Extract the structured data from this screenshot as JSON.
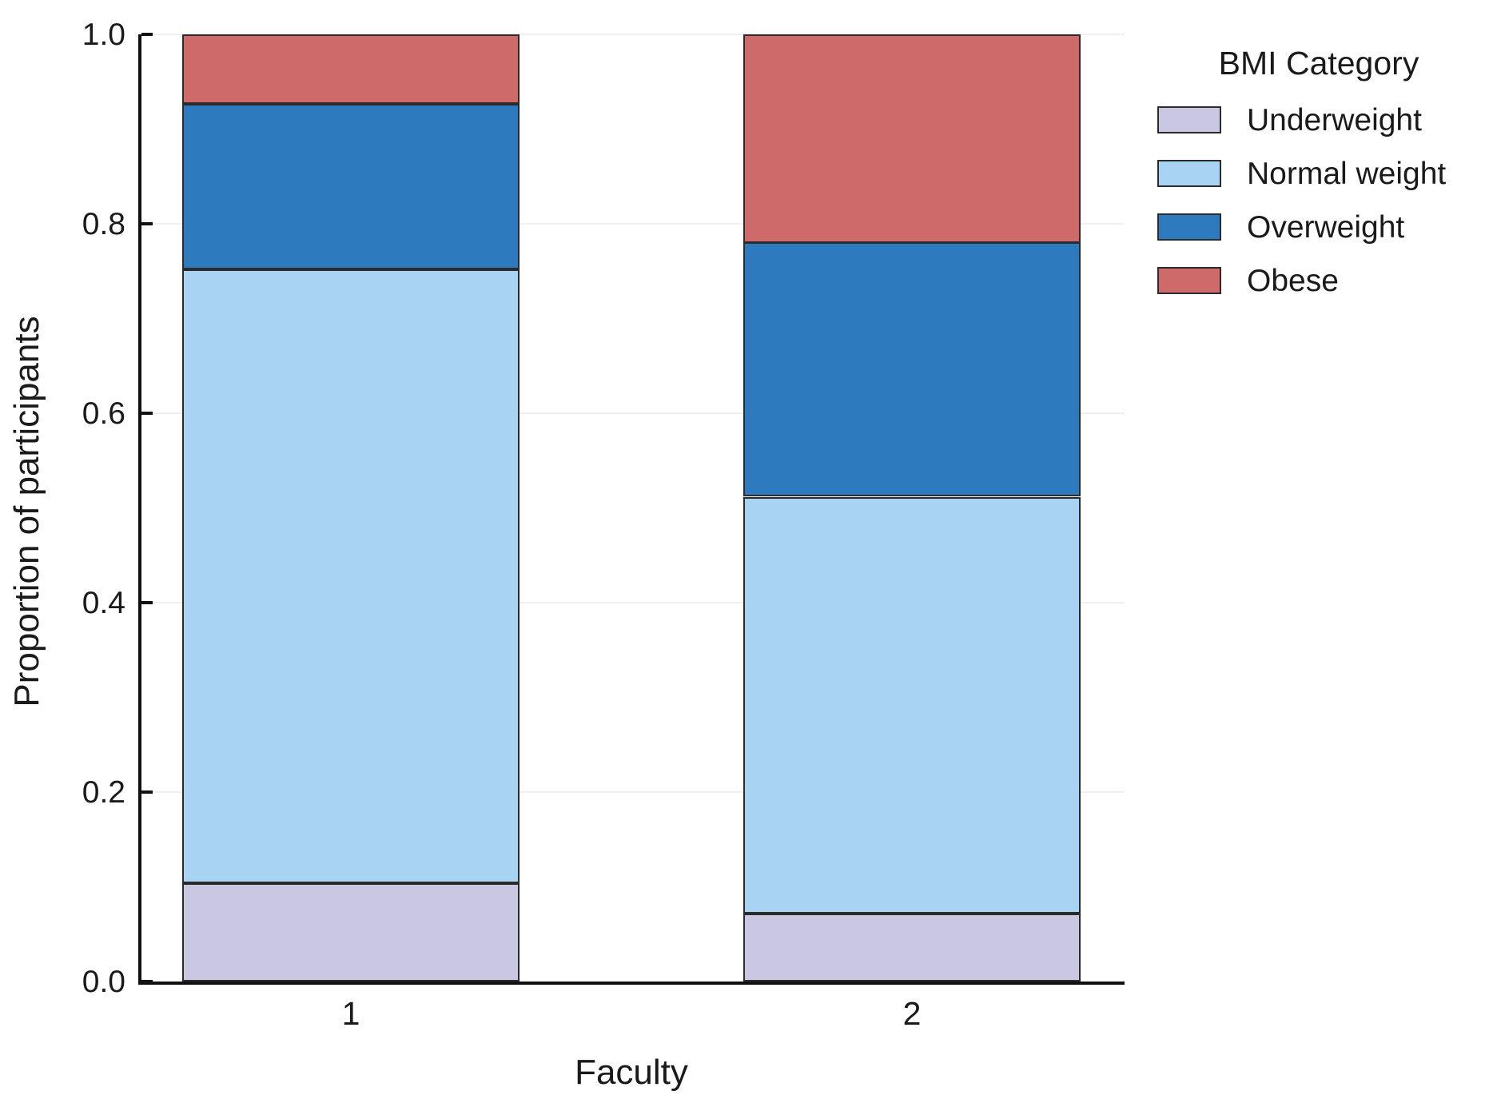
{
  "chart_data": {
    "type": "bar",
    "stacked": true,
    "orientation": "vertical",
    "title": "",
    "xlabel": "Faculty",
    "ylabel": "Proportion of participants",
    "categories": [
      "1",
      "2"
    ],
    "series": [
      {
        "name": "Underweight",
        "color": "#c9c7e1",
        "values": [
          0.104,
          0.072
        ]
      },
      {
        "name": "Normal weight",
        "color": "#a8d3f3",
        "values": [
          0.648,
          0.44
        ]
      },
      {
        "name": "Overweight",
        "color": "#2d7abf",
        "values": [
          0.175,
          0.268
        ]
      },
      {
        "name": "Obese",
        "color": "#ce6a6a",
        "values": [
          0.073,
          0.22
        ]
      }
    ],
    "ylim": [
      0.0,
      1.0
    ],
    "yticks": [
      {
        "value": 0.0,
        "label": "0.0"
      },
      {
        "value": 0.2,
        "label": "0.2"
      },
      {
        "value": 0.4,
        "label": "0.4"
      },
      {
        "value": 0.6,
        "label": "0.6"
      },
      {
        "value": 0.8,
        "label": "0.8"
      },
      {
        "value": 1.0,
        "label": "1.0"
      }
    ],
    "grid": "horizontal",
    "legend_title": "BMI Category",
    "legend_position": "outside-top-right",
    "segment_edge_color": "#2b2b2b",
    "spine_color": "#111111",
    "grid_color": "#f0f0f0",
    "background_color": "#ffffff"
  }
}
